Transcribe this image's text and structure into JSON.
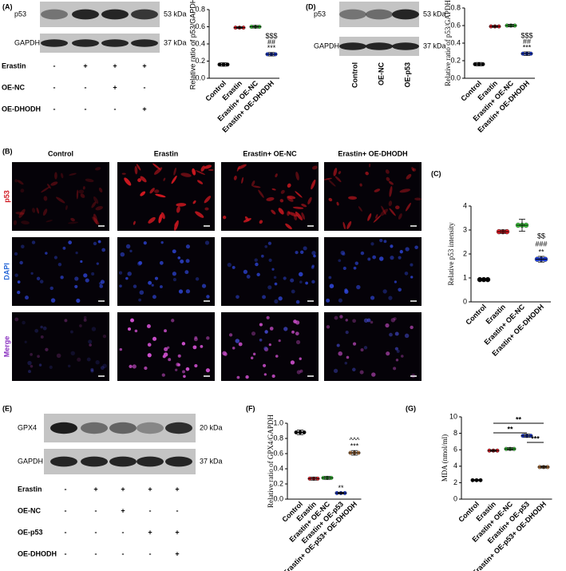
{
  "panel_labels": {
    "A": "(A)",
    "B": "(B)",
    "C": "(C)",
    "D": "(D)",
    "E": "(E)",
    "F": "(F)",
    "G": "(G)"
  },
  "blot_a": {
    "bands": [
      {
        "name": "p53",
        "size": "53 kDa"
      },
      {
        "name": "GAPDH",
        "size": "37 kDa"
      }
    ],
    "conditions": [
      {
        "name": "Erastin",
        "signs": [
          "-",
          "+",
          "+",
          "+"
        ]
      },
      {
        "name": "OE-NC",
        "signs": [
          "-",
          "-",
          "+",
          "-"
        ]
      },
      {
        "name": "OE-DHODH",
        "signs": [
          "-",
          "-",
          "-",
          "+"
        ]
      }
    ]
  },
  "blot_d": {
    "bands": [
      {
        "name": "p53",
        "size": "53 kDa"
      },
      {
        "name": "GAPDH",
        "size": "37 kDa"
      }
    ],
    "lanes": [
      "Control",
      "OE-NC",
      "OE-p53"
    ]
  },
  "blot_e": {
    "bands": [
      {
        "name": "GPX4",
        "size": "20 kDa"
      },
      {
        "name": "GAPDH",
        "size": "37 kDa"
      }
    ],
    "conditions": [
      {
        "name": "Erastin",
        "signs": [
          "-",
          "+",
          "+",
          "+",
          "+"
        ]
      },
      {
        "name": "OE-NC",
        "signs": [
          "-",
          "-",
          "+",
          "-",
          "-"
        ]
      },
      {
        "name": "OE-p53",
        "signs": [
          "-",
          "-",
          "-",
          "+",
          "+"
        ]
      },
      {
        "name": "OE-DHODH",
        "signs": [
          "-",
          "-",
          "-",
          "-",
          "+"
        ]
      }
    ]
  },
  "micrographs": {
    "columns": [
      "Control",
      "Erastin",
      "Erastin+ OE-NC",
      "Erastin+ OE-DHODH"
    ],
    "rows": [
      "p53",
      "DAPI",
      "Merge"
    ]
  },
  "chart_data": [
    {
      "type": "dot",
      "ylabel": "Relative ratio of p53/GAPDH",
      "categories": [
        "Control",
        "Erastin",
        "Erastin+ OE-NC",
        "Erastin+ OE-DHODH"
      ],
      "values": [
        0.16,
        0.59,
        0.6,
        0.28
      ],
      "errors": [
        0.02,
        0.01,
        0.015,
        0.02
      ],
      "colors": [
        "#000000",
        "#e8202a",
        "#3cc83c",
        "#2040e0"
      ],
      "annotations": [
        null,
        null,
        null,
        [
          "$$$",
          "##",
          "***"
        ]
      ],
      "ylim": [
        0,
        0.8
      ],
      "yticks": [
        {
          "value": 0,
          "label": "0.0"
        },
        0.2,
        0.4,
        0.6,
        0.8
      ]
    },
    {
      "type": "dot",
      "ylabel": "Relative ratio of p53/GAPDH",
      "categories": [
        "Control",
        "Erastin",
        "Erastin+ OE-NC",
        "Erastin+ OE-DHODH"
      ],
      "values": [
        0.16,
        0.59,
        0.6,
        0.28
      ],
      "errors": [
        0.02,
        0.01,
        0.015,
        0.02
      ],
      "colors": [
        "#000000",
        "#e8202a",
        "#3cc83c",
        "#2040e0"
      ],
      "annotations": [
        null,
        null,
        null,
        [
          "$$$",
          "##",
          "***"
        ]
      ],
      "ylim": [
        0,
        0.8
      ],
      "yticks": [
        {
          "value": 0,
          "label": "0.0"
        },
        0.2,
        0.4,
        0.6,
        0.8
      ]
    },
    {
      "type": "dot",
      "ylabel": "Relative p53 intensity",
      "categories": [
        "Control",
        "Erastin",
        "Erastin+ OE-NC",
        "Erastin+ OE-DHODH"
      ],
      "values": [
        0.93,
        2.93,
        3.2,
        1.78
      ],
      "errors": [
        0.04,
        0.07,
        0.25,
        0.12
      ],
      "colors": [
        "#000000",
        "#e8202a",
        "#3cc83c",
        "#2040e0"
      ],
      "annotations": [
        null,
        null,
        null,
        [
          "$$",
          "###",
          "**"
        ]
      ],
      "ylim": [
        0,
        4
      ],
      "yticks": [
        0,
        1,
        2,
        3,
        4
      ]
    },
    {
      "type": "dot",
      "ylabel": "Relative ratio of GPX4/GAPDH",
      "categories": [
        "Control",
        "Erastin",
        "Erastin+ OE-NC",
        "Erastin+ OE-p53",
        "Erastin+ OE-p53+ OE-DHODH"
      ],
      "values": [
        0.88,
        0.27,
        0.28,
        0.08,
        0.61
      ],
      "errors": [
        0.03,
        0.02,
        0.02,
        0.01,
        0.03
      ],
      "colors": [
        "#000000",
        "#e8202a",
        "#3cc83c",
        "#2040e0",
        "#c8864a"
      ],
      "annotations": [
        null,
        null,
        null,
        [
          "**"
        ],
        [
          "^^^",
          "***"
        ]
      ],
      "ylim": [
        0,
        1
      ],
      "yticks": [
        {
          "value": 0,
          "label": "0.0"
        },
        0.2,
        0.4,
        0.6,
        0.8,
        {
          "value": 1,
          "label": "1.0"
        }
      ]
    },
    {
      "type": "dot",
      "ylabel": "MDA (nmol/ml)",
      "categories": [
        "Control",
        "Erastin",
        "Erastin+ OE-NC",
        "Erastin+ OE-p53",
        "Erastin+ OE-p53+ OE-DHODH"
      ],
      "values": [
        2.3,
        5.9,
        6.1,
        7.7,
        3.9
      ],
      "errors": [
        0.08,
        0.1,
        0.15,
        0.2,
        0.12
      ],
      "colors": [
        "#000000",
        "#e8202a",
        "#3cc83c",
        "#2040e0",
        "#c8864a"
      ],
      "comparisons": [
        {
          "from": "Erastin",
          "to": "Erastin+ OE-p53+ OE-DHODH",
          "label": "**"
        },
        {
          "from": "Erastin",
          "to": "Erastin+ OE-p53",
          "label": "**"
        },
        {
          "from": "Erastin+ OE-p53",
          "to": "Erastin+ OE-p53+ OE-DHODH",
          "label": "***"
        }
      ],
      "ylim": [
        0,
        10
      ],
      "yticks": [
        0,
        2,
        4,
        6,
        8,
        10
      ]
    }
  ]
}
